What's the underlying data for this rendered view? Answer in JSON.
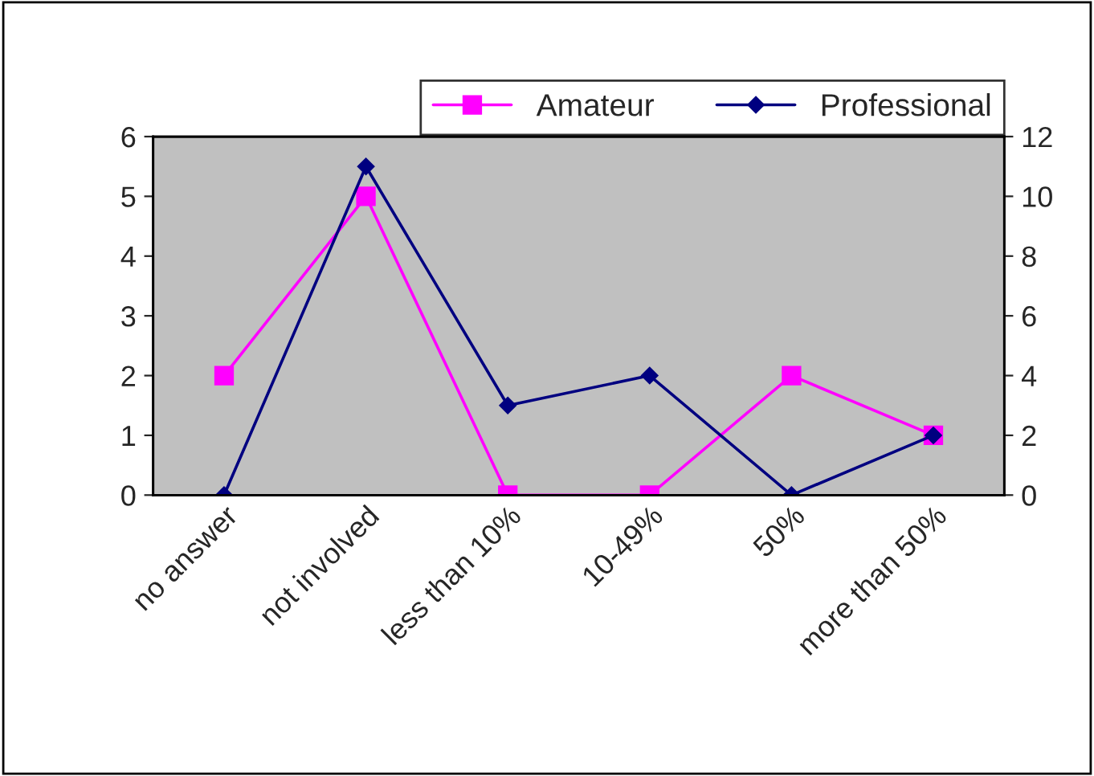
{
  "chart_data": {
    "type": "line",
    "categories": [
      "no answer",
      "not involved",
      "less than 10%",
      "10-49%",
      "50%",
      "more than 50%"
    ],
    "series": [
      {
        "name": "Amateur",
        "color": "#ff00ff",
        "marker": "square",
        "values": [
          2,
          5,
          0,
          0,
          2,
          1
        ]
      },
      {
        "name": "Professional",
        "color": "#000080",
        "marker": "diamond",
        "axis": "y2",
        "values": [
          0,
          11,
          3,
          4,
          0,
          2
        ]
      }
    ],
    "ylim": [
      0,
      6
    ],
    "yticks": [
      0,
      1,
      2,
      3,
      4,
      5,
      6
    ],
    "y2lim": [
      0,
      12
    ],
    "y2ticks": [
      0,
      2,
      4,
      6,
      8,
      10,
      12
    ],
    "grid": false,
    "legend": "top right"
  }
}
